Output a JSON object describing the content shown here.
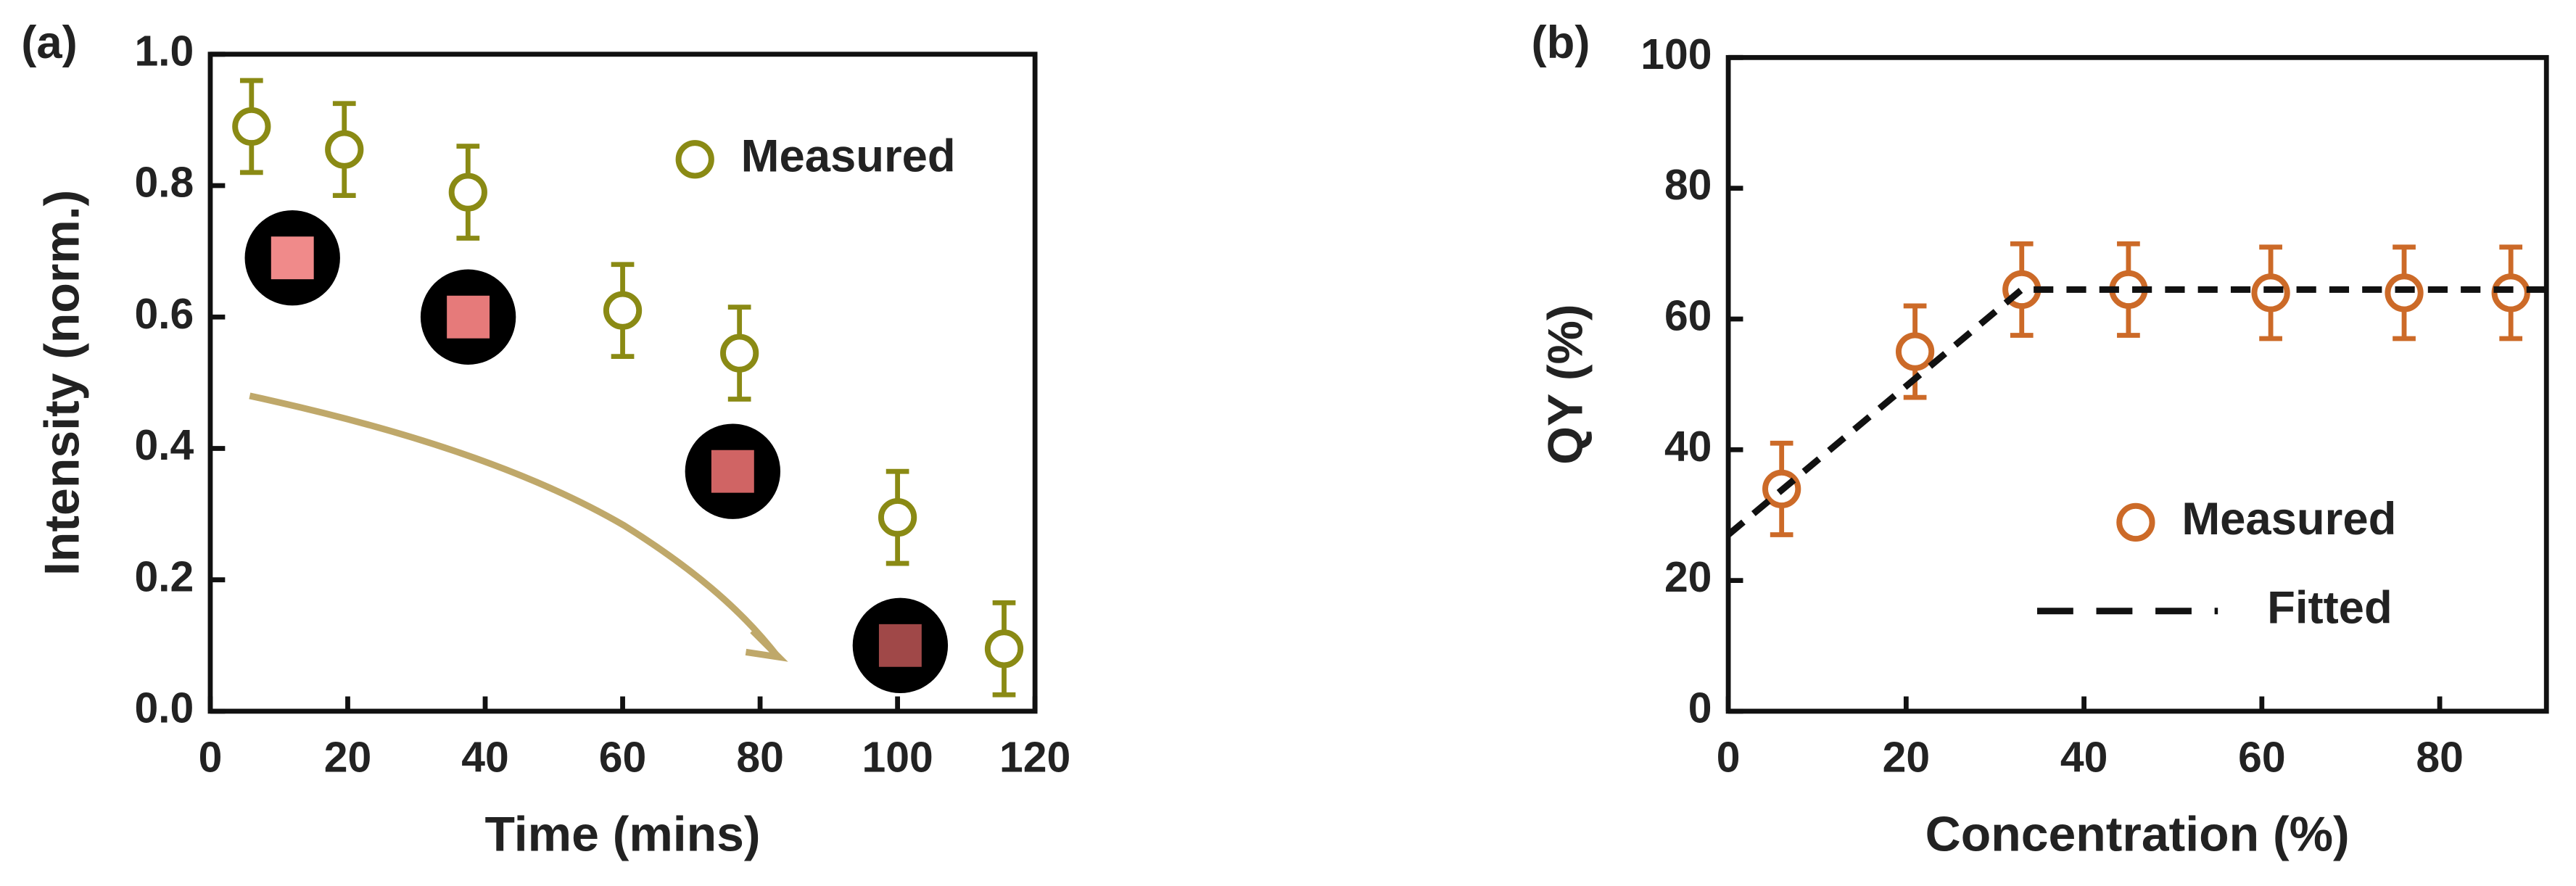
{
  "chart_data": [
    {
      "type": "scatter",
      "label": "(a)",
      "xlabel": "Time (mins)",
      "ylabel": "Intensity (norm.)",
      "xlim": [
        0,
        120
      ],
      "ylim": [
        0,
        1
      ],
      "xticks": [
        0,
        20,
        40,
        60,
        80,
        100,
        120
      ],
      "yticks": [
        {
          "value": 0,
          "label": "0.0"
        },
        0.2,
        0.4,
        0.6,
        0.8,
        {
          "value": 1,
          "label": "1.0"
        }
      ],
      "series": [
        {
          "name": "Measured",
          "color": "#8a8a14",
          "x": [
            6,
            19.5,
            37.5,
            60,
            77,
            100,
            115.5
          ],
          "values": [
            0.89,
            0.855,
            0.79,
            0.61,
            0.545,
            0.295,
            0.095
          ],
          "errors": [
            0.07,
            0.07,
            0.07,
            0.07,
            0.07,
            0.07,
            0.07
          ]
        }
      ]
    },
    {
      "type": "scatter",
      "label": "(b)",
      "xlabel": "Concentration (%)",
      "ylabel": "QY (%)",
      "xlim": [
        0,
        92
      ],
      "ylim": [
        0,
        100
      ],
      "xticks": [
        0,
        20,
        40,
        60,
        80
      ],
      "yticks": [
        0,
        20,
        40,
        60,
        80,
        100
      ],
      "series": [
        {
          "name": "Measured",
          "color": "#cc6a28",
          "x": [
            6,
            21,
            33,
            45,
            61,
            76,
            88
          ],
          "values": [
            34,
            55,
            64.5,
            64.5,
            64,
            64,
            64
          ],
          "errors": [
            7,
            7,
            7,
            7,
            7,
            7,
            7
          ]
        },
        {
          "name": "Fitted",
          "color": "#111111",
          "style": "dashed",
          "x": [
            0,
            33,
            92
          ],
          "values": [
            27,
            64.5,
            64.5
          ]
        }
      ]
    }
  ]
}
